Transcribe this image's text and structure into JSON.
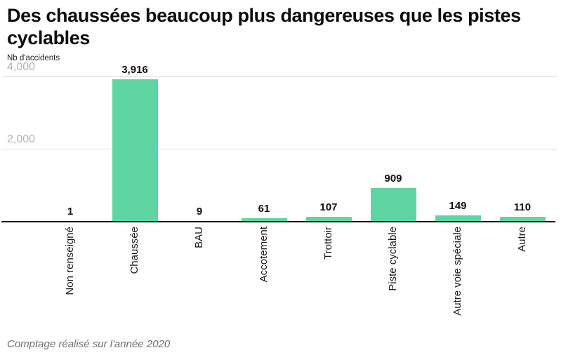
{
  "header": {
    "title": "Des chaussées beaucoup plus dangereuses que les pistes cyclables",
    "title_lines": [
      "Des chaussées beaucoup plus dangereuses que les pistes",
      "cyclables"
    ]
  },
  "chart_data": {
    "type": "bar",
    "title": "Des chaussées beaucoup plus dangereuses que les pistes cyclables",
    "xlabel": "",
    "ylabel": "Nb d'accidents",
    "categories": [
      "Non renseigné",
      "Chaussée",
      "BAU",
      "Accotement",
      "Trottoir",
      "Piste cyclable",
      "Autre voie spéciale",
      "Autre"
    ],
    "values": [
      1,
      3916,
      9,
      61,
      107,
      909,
      149,
      110
    ],
    "value_labels": [
      "1",
      "3,916",
      "9",
      "61",
      "107",
      "909",
      "149",
      "110"
    ],
    "ylim": [
      0,
      4000
    ],
    "yticks": [
      {
        "value": 4000,
        "label": "4,000"
      },
      {
        "value": 2000,
        "label": "2,000"
      }
    ],
    "grid": true,
    "legend": false,
    "bar_color": "#60d5a4"
  },
  "footer": {
    "note": "Comptage réalisé sur l'année 2020"
  },
  "colors": {
    "bar": "#60d5a4",
    "tick_label": "#b3b3b3",
    "gridline": "#dadada",
    "baseline": "#16191d",
    "title_text": "#0d0d0d",
    "footer_text": "#6e6e6e"
  }
}
